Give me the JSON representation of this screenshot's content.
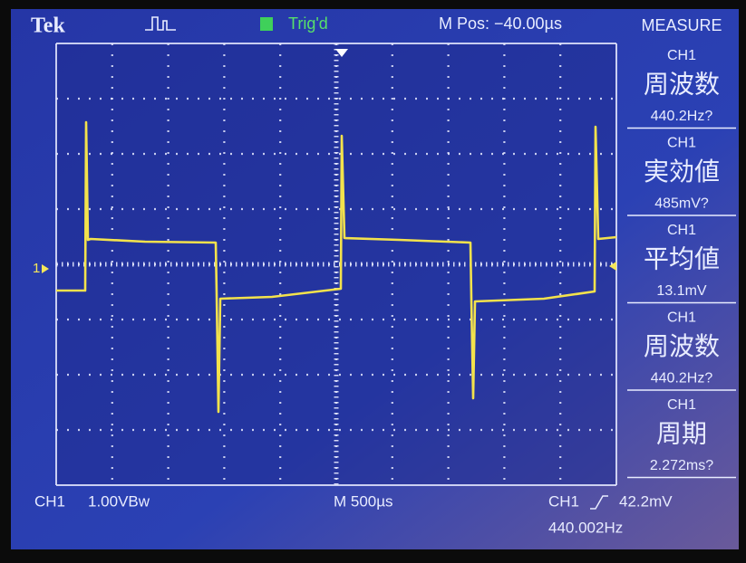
{
  "header": {
    "brand": "Tek",
    "trigger_status": "Trig'd",
    "position": "M Pos: −40.00µs",
    "menu_title": "MEASURE"
  },
  "measurements": [
    {
      "source": "CH1",
      "label": "周波数",
      "value": "440.2Hz?"
    },
    {
      "source": "CH1",
      "label": "実効値",
      "value": "485mV?"
    },
    {
      "source": "CH1",
      "label": "平均値",
      "value": "13.1mV"
    },
    {
      "source": "CH1",
      "label": "周波数",
      "value": "440.2Hz?"
    },
    {
      "source": "CH1",
      "label": "周期",
      "value": "2.272ms?"
    }
  ],
  "channel_marker": "1",
  "footer": {
    "channel": "CH1",
    "scale": "1.00VBw",
    "timebase": "M 500µs",
    "trigger_source": "CH1",
    "trigger_level": "42.2mV",
    "frequency": "440.002Hz"
  }
}
